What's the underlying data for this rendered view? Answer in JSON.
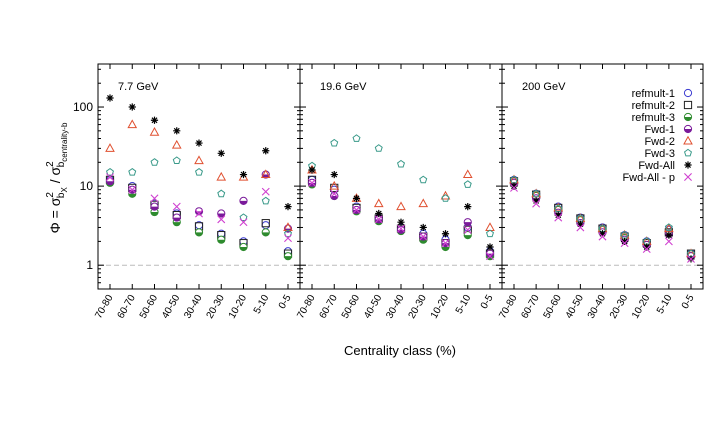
{
  "chart_data": {
    "type": "scatter",
    "ylabel": {
      "phi": "Φ = σ",
      "sup1": "2",
      "sub1": "b",
      "sub1b": "X",
      "mid": " / σ",
      "sup2": "2",
      "sub2": "b",
      "sub2b": "centrality-b"
    },
    "xlabel": "Centrality class (%)",
    "y_scale": "log",
    "ylim": [
      0.5,
      350
    ],
    "y_ticks": [
      {
        "value": 1,
        "label": "1"
      },
      {
        "value": 10,
        "label": "10"
      },
      {
        "value": 100,
        "label": "100"
      }
    ],
    "reference_line": 1,
    "categories": [
      "70-80",
      "60-70",
      "50-60",
      "40-50",
      "30-40",
      "20-30",
      "10-20",
      "5-10",
      "0-5"
    ],
    "legend_position": "top-right of third panel",
    "series_styles": [
      {
        "name": "refmult-1",
        "marker": "circle-open",
        "color": "#3a3ad0"
      },
      {
        "name": "refmult-2",
        "marker": "square-open",
        "color": "#222222"
      },
      {
        "name": "refmult-3",
        "marker": "circle-half",
        "color": "#2e8b2e"
      },
      {
        "name": "Fwd-1",
        "marker": "circle-half",
        "color": "#7a1a9a"
      },
      {
        "name": "Fwd-2",
        "marker": "triangle-open",
        "color": "#e05030"
      },
      {
        "name": "Fwd-3",
        "marker": "pentagon-open",
        "color": "#3a9a8a"
      },
      {
        "name": "Fwd-All",
        "marker": "star",
        "color": "#000000"
      },
      {
        "name": "Fwd-All - p",
        "marker": "cross",
        "color": "#d040d0"
      }
    ],
    "panels": [
      {
        "label": "7.7 GeV",
        "series": [
          {
            "name": "refmult-1",
            "values": [
              12,
              10,
              6,
              4.5,
              3.2,
              2.5,
              2,
              3.2,
              1.5
            ]
          },
          {
            "name": "refmult-2",
            "values": [
              12,
              9.5,
              5.8,
              4.3,
              3.1,
              2.4,
              1.9,
              3.4,
              1.4
            ]
          },
          {
            "name": "refmult-3",
            "values": [
              11,
              8,
              4.7,
              3.5,
              2.6,
              2.1,
              1.7,
              2.6,
              1.3
            ]
          },
          {
            "name": "Fwd-1",
            "values": [
              11.5,
              9,
              5.5,
              4,
              4.8,
              4.5,
              6.5,
              14,
              2.9
            ]
          },
          {
            "name": "Fwd-2",
            "values": [
              30,
              60,
              48,
              33,
              21,
              13,
              13,
              14,
              3
            ]
          },
          {
            "name": "Fwd-3",
            "values": [
              15,
              15,
              20,
              21,
              15,
              8,
              4,
              6.5,
              2.5
            ]
          },
          {
            "name": "Fwd-All",
            "values": [
              130,
              100,
              68,
              50,
              35,
              26,
              14,
              28,
              5.5
            ]
          },
          {
            "name": "Fwd-All - p",
            "values": [
              13,
              9,
              7,
              5.5,
              4.5,
              3.8,
              3.5,
              8.5,
              2.2
            ]
          }
        ]
      },
      {
        "label": "19.6 GeV",
        "series": [
          {
            "name": "refmult-1",
            "values": [
              12,
              9,
              5.5,
              4,
              3,
              2.5,
              2.1,
              3,
              1.5
            ]
          },
          {
            "name": "refmult-2",
            "values": [
              12,
              9.5,
              5.3,
              3.9,
              2.9,
              2.3,
              1.9,
              2.8,
              1.4
            ]
          },
          {
            "name": "refmult-3",
            "values": [
              10.5,
              7.5,
              4.8,
              3.6,
              2.7,
              2.1,
              1.7,
              2.4,
              1.3
            ]
          },
          {
            "name": "Fwd-1",
            "values": [
              11,
              7.5,
              5,
              3.8,
              2.8,
              2.3,
              1.9,
              3.5,
              1.4
            ]
          },
          {
            "name": "Fwd-2",
            "values": [
              16,
              10,
              7,
              6,
              5.5,
              6,
              7.5,
              14,
              3
            ]
          },
          {
            "name": "Fwd-3",
            "values": [
              18,
              35,
              40,
              30,
              19,
              12,
              7,
              10.5,
              2.5
            ]
          },
          {
            "name": "Fwd-All",
            "values": [
              16,
              14,
              7,
              4.5,
              3.5,
              3,
              2.5,
              5.5,
              1.7
            ]
          },
          {
            "name": "Fwd-All - p",
            "values": [
              11,
              8,
              5,
              3.8,
              2.9,
              2.3,
              1.9,
              2.8,
              1.3
            ]
          }
        ]
      },
      {
        "label": "200 GeV",
        "series": [
          {
            "name": "refmult-1",
            "values": [
              12,
              8,
              5.5,
              4,
              3,
              2.4,
              2,
              2.8,
              1.4
            ]
          },
          {
            "name": "refmult-2",
            "values": [
              11.5,
              7.8,
              5.3,
              3.9,
              2.9,
              2.3,
              1.9,
              2.6,
              1.4
            ]
          },
          {
            "name": "refmult-3",
            "values": [
              11,
              7.5,
              5,
              3.7,
              2.8,
              2.2,
              1.8,
              2.5,
              1.3
            ]
          },
          {
            "name": "Fwd-1",
            "values": [
              11,
              7,
              4.6,
              3.4,
              2.6,
              2.1,
              1.8,
              2.5,
              1.3
            ]
          },
          {
            "name": "Fwd-2",
            "values": [
              12,
              8,
              5.3,
              3.9,
              2.9,
              2.4,
              2,
              2.9,
              1.4
            ]
          },
          {
            "name": "Fwd-3",
            "values": [
              12,
              8,
              5.2,
              3.9,
              2.9,
              2.4,
              2,
              3,
              1.4
            ]
          },
          {
            "name": "Fwd-All",
            "values": [
              10,
              6.5,
              4.3,
              3.3,
              2.5,
              2,
              1.7,
              2.4,
              1.2
            ]
          },
          {
            "name": "Fwd-All - p",
            "values": [
              9.5,
              6,
              4,
              3,
              2.3,
              1.9,
              1.6,
              2,
              1.2
            ]
          }
        ]
      }
    ]
  }
}
